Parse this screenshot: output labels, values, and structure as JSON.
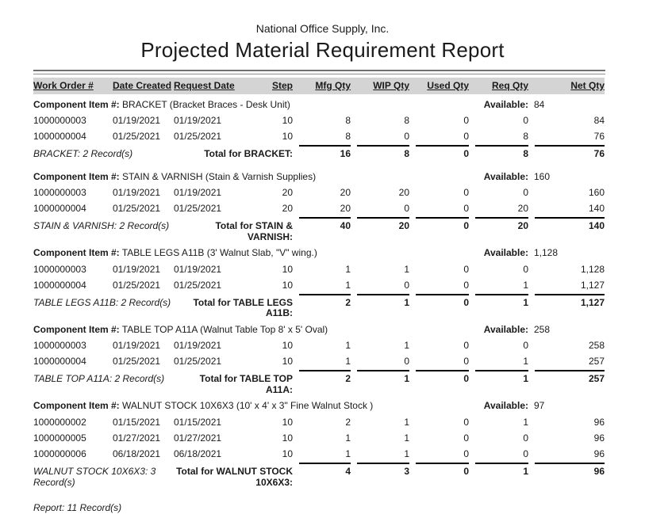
{
  "colors": {
    "header_bg": "#d4d4d4",
    "rule_top": "#707070",
    "rule_bottom": "#8f8f8f",
    "text": "#1a1a1a"
  },
  "report": {
    "company": "National Office Supply, Inc.",
    "title": "Projected Material Requirement Report",
    "component_prefix": "Component Item #:",
    "available_label": "Available:",
    "columns": [
      "Work Order #",
      "Date Created",
      "Request Date",
      "Step",
      "Mfg Qty",
      "WIP Qty",
      "Used Qty",
      "Req Qty",
      "Net Qty"
    ],
    "groups": [
      {
        "name": "BRACKET",
        "description": "(Bracket Braces - Desk Unit)",
        "available": "84",
        "rows": [
          [
            "1000000003",
            "01/19/2021",
            "01/19/2021",
            "10",
            "8",
            "8",
            "0",
            "0",
            "84"
          ],
          [
            "1000000004",
            "01/25/2021",
            "01/25/2021",
            "10",
            "8",
            "0",
            "0",
            "8",
            "76"
          ]
        ],
        "record_count": "BRACKET: 2 Record(s)",
        "total_label": "Total for BRACKET:",
        "totals": [
          "16",
          "8",
          "0",
          "8",
          "76"
        ]
      },
      {
        "name": "STAIN & VARNISH",
        "description": "(Stain & Varnish Supplies)",
        "available": "160",
        "rows": [
          [
            "1000000003",
            "01/19/2021",
            "01/19/2021",
            "20",
            "20",
            "20",
            "0",
            "0",
            "160"
          ],
          [
            "1000000004",
            "01/25/2021",
            "01/25/2021",
            "20",
            "20",
            "0",
            "0",
            "20",
            "140"
          ]
        ],
        "record_count": "STAIN & VARNISH: 2 Record(s)",
        "total_label": "Total for STAIN & VARNISH:",
        "totals": [
          "40",
          "20",
          "0",
          "20",
          "140"
        ]
      },
      {
        "name": "TABLE LEGS A11B",
        "description": "(3' Walnut Slab, \"V\" wing.)",
        "available": "1,128",
        "rows": [
          [
            "1000000003",
            "01/19/2021",
            "01/19/2021",
            "10",
            "1",
            "1",
            "0",
            "0",
            "1,128"
          ],
          [
            "1000000004",
            "01/25/2021",
            "01/25/2021",
            "10",
            "1",
            "0",
            "0",
            "1",
            "1,127"
          ]
        ],
        "record_count": "TABLE LEGS A11B: 2 Record(s)",
        "total_label": "Total for TABLE LEGS A11B:",
        "totals": [
          "2",
          "1",
          "0",
          "1",
          "1,127"
        ]
      },
      {
        "name": "TABLE TOP A11A",
        "description": "(Walnut Table Top 8' x 5' Oval)",
        "available": "258",
        "rows": [
          [
            "1000000003",
            "01/19/2021",
            "01/19/2021",
            "10",
            "1",
            "1",
            "0",
            "0",
            "258"
          ],
          [
            "1000000004",
            "01/25/2021",
            "01/25/2021",
            "10",
            "1",
            "0",
            "0",
            "1",
            "257"
          ]
        ],
        "record_count": "TABLE TOP A11A: 2 Record(s)",
        "total_label": "Total for TABLE TOP A11A:",
        "totals": [
          "2",
          "1",
          "0",
          "1",
          "257"
        ]
      },
      {
        "name": "WALNUT STOCK 10X6X3",
        "description": "(10' x 4' x 3\" Fine Walnut Stock )",
        "available": "97",
        "rows": [
          [
            "1000000002",
            "01/15/2021",
            "01/15/2021",
            "10",
            "2",
            "1",
            "0",
            "1",
            "96"
          ],
          [
            "1000000005",
            "01/27/2021",
            "01/27/2021",
            "10",
            "1",
            "1",
            "0",
            "0",
            "96"
          ],
          [
            "1000000006",
            "06/18/2021",
            "06/18/2021",
            "10",
            "1",
            "1",
            "0",
            "0",
            "96"
          ]
        ],
        "record_count": "WALNUT STOCK 10X6X3: 3 Record(s)",
        "total_label": "Total for WALNUT STOCK 10X6X3:",
        "totals": [
          "4",
          "3",
          "0",
          "1",
          "96"
        ]
      }
    ],
    "footer": "Report: 11 Record(s)"
  }
}
